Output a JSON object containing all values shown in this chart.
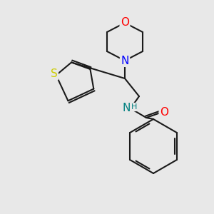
{
  "bg_color": "#e8e8e8",
  "bond_color": "#1a1a1a",
  "bond_width": 1.5,
  "atom_colors": {
    "O": "#ff0000",
    "N": "#0000ff",
    "S": "#cccc00",
    "NH": "#008080"
  }
}
